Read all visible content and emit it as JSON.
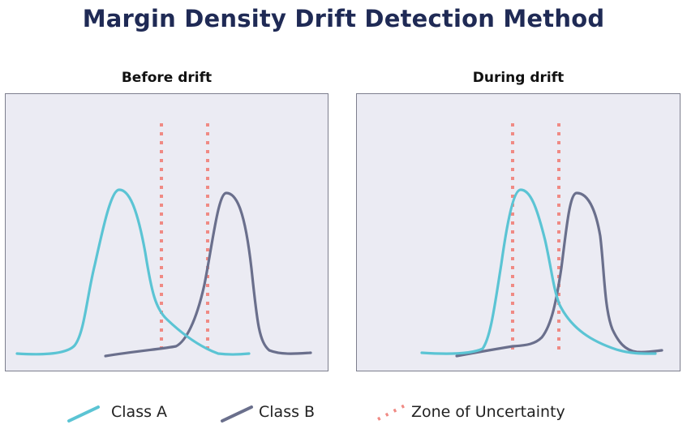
{
  "title": "Margin Density Drift Detection Method",
  "panels": [
    {
      "title": "Before drift"
    },
    {
      "title": "During drift"
    }
  ],
  "legend": [
    {
      "label": "Class A",
      "color": "#5bc4d4",
      "style": "solid"
    },
    {
      "label": "Class B",
      "color": "#6a6f8c",
      "style": "solid"
    },
    {
      "label": "Zone of Uncertainty",
      "color": "#f08a84",
      "style": "dotted"
    }
  ],
  "colors": {
    "panel_bg": "#ebebf3",
    "class_a": "#5bc4d4",
    "class_b": "#6a6f8c",
    "zone": "#f08a84",
    "title": "#1f2a55"
  }
}
